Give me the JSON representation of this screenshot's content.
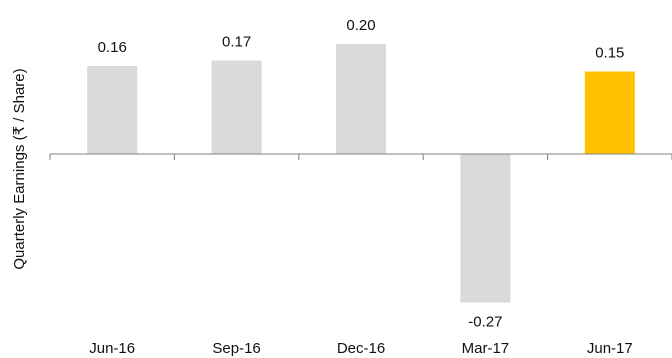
{
  "chart_data": {
    "type": "bar",
    "title": "",
    "xlabel": "",
    "ylabel": "Quarterly Earnings (₹ / Share)",
    "categories": [
      "Jun-16",
      "Sep-16",
      "Dec-16",
      "Mar-17",
      "Jun-17"
    ],
    "values": [
      0.16,
      0.17,
      0.2,
      -0.27,
      0.15
    ],
    "data_labels": [
      "0.16",
      "0.17",
      "0.20",
      "-0.27",
      "0.15"
    ],
    "ylim": [
      -0.27,
      0.2
    ],
    "grid": false,
    "legend": "none",
    "colors": {
      "default_bar": "#d9d9d9",
      "highlight_bar": "#ffc000",
      "axis": "#808080",
      "text": "#111111"
    },
    "highlight_index": 4
  }
}
